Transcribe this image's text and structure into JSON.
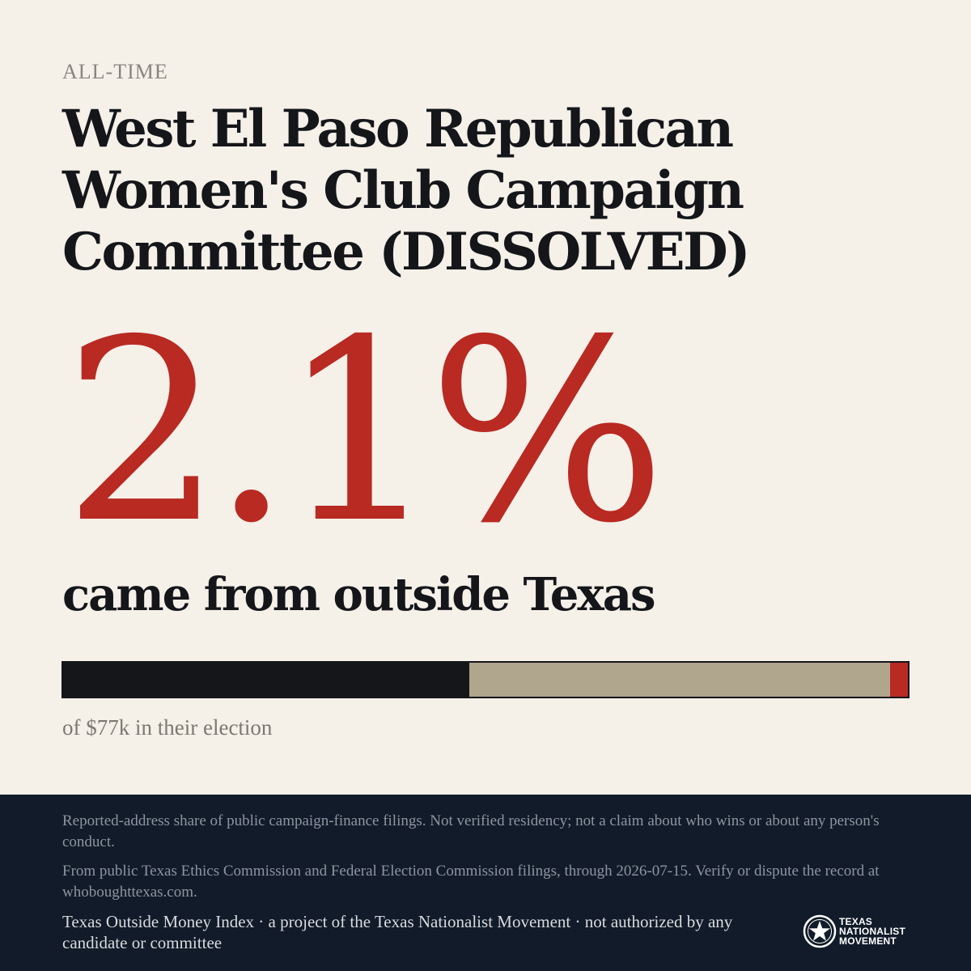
{
  "header": {
    "eyebrow": "ALL-TIME",
    "title": "West El Paso Republican Women's Club Campaign Committee (DISSOLVED)"
  },
  "headline": {
    "percent": "2.1%",
    "subhead": "came from outside Texas"
  },
  "bar": {
    "segments": [
      {
        "name": "dark",
        "share": 0.481,
        "color": "#14161a"
      },
      {
        "name": "tan",
        "share": 0.498,
        "color": "#b0a68e"
      },
      {
        "name": "outside-texas",
        "share": 0.021,
        "color": "#b82a22"
      }
    ],
    "caption": "of $77k in their election"
  },
  "footer": {
    "disclaimer_1": "Reported-address share of public campaign-finance filings. Not verified residency; not a claim about who wins or about any person's conduct.",
    "disclaimer_2": "From public Texas Ethics Commission and Federal Election Commission filings, through 2026-07-15. Verify or dispute the record at whoboughttexas.com.",
    "credit": "Texas Outside Money Index · a project of the Texas Nationalist Movement · not authorized by any candidate or committee",
    "logo": {
      "icon": "star-seal-icon",
      "line_1": "TEXAS",
      "line_2": "NATIONALIST",
      "line_3": "MOVEMENT"
    }
  },
  "colors": {
    "background": "#f5f0e8",
    "accent_red": "#b82a22",
    "ink": "#14161a",
    "footer_bg": "#111b29"
  }
}
